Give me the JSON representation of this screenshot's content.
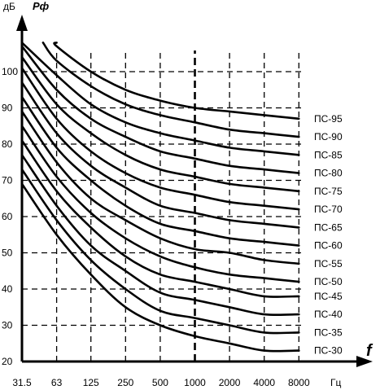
{
  "chart_data": {
    "type": "line",
    "y_unit": "дБ",
    "y_symbol": "Pф",
    "x_symbol": "f",
    "x_unit": "Гц",
    "x_ticks": [
      "31.5",
      "63",
      "125",
      "250",
      "500",
      "1000",
      "2000",
      "4000",
      "8000"
    ],
    "x_values": [
      31.5,
      63,
      125,
      250,
      500,
      1000,
      2000,
      4000,
      8000
    ],
    "y_ticks": [
      20,
      30,
      40,
      50,
      60,
      70,
      80,
      90,
      100
    ],
    "ylim": [
      20,
      110
    ],
    "grid": true,
    "series": [
      {
        "name": "ПС-30",
        "values": [
          69,
          55,
          44,
          35,
          30,
          27,
          25,
          23,
          23
        ]
      },
      {
        "name": "ПС-35",
        "values": [
          73,
          59,
          48,
          40,
          34,
          32,
          30,
          28,
          28
        ]
      },
      {
        "name": "ПС-40",
        "values": [
          77,
          63,
          52,
          45,
          39,
          37,
          35,
          33,
          33
        ]
      },
      {
        "name": "ПС-45",
        "values": [
          81,
          67,
          57,
          49,
          44,
          42,
          40,
          38,
          38
        ]
      },
      {
        "name": "ПС-50",
        "values": [
          85,
          71,
          61,
          54,
          49,
          46,
          44,
          43,
          42
        ]
      },
      {
        "name": "ПС-55",
        "values": [
          89,
          75,
          65,
          59,
          54,
          51,
          50,
          48,
          47
        ]
      },
      {
        "name": "ПС-60",
        "values": [
          93,
          79,
          70,
          63,
          58,
          56,
          54,
          53,
          52
        ]
      },
      {
        "name": "ПС-65",
        "values": [
          97,
          83,
          74,
          68,
          63,
          61,
          59,
          58,
          57
        ]
      },
      {
        "name": "ПС-70",
        "values": [
          101,
          87,
          78,
          72,
          68,
          66,
          64,
          63,
          62
        ]
      },
      {
        "name": "ПС-75",
        "values": [
          104,
          91,
          83,
          77,
          73,
          71,
          69,
          68,
          67
        ]
      },
      {
        "name": "ПС-80",
        "values": [
          107,
          95,
          87,
          82,
          78,
          76,
          74,
          73,
          72
        ]
      },
      {
        "name": "ПС-85",
        "values": [
          108,
          99,
          91,
          86,
          83,
          81,
          79,
          78,
          77
        ]
      },
      {
        "name": "ПС-90",
        "values": [
          null,
          103,
          96,
          91,
          88,
          86,
          84,
          83,
          82
        ]
      },
      {
        "name": "ПС-95",
        "values": [
          null,
          107,
          100,
          95,
          92,
          90,
          89,
          88,
          87
        ]
      }
    ],
    "series_x_start": {
      "ПС-90": 48,
      "ПС-95": 63
    },
    "series_start_values": {
      "ПС-90": 108,
      "ПС-95": 108
    }
  }
}
